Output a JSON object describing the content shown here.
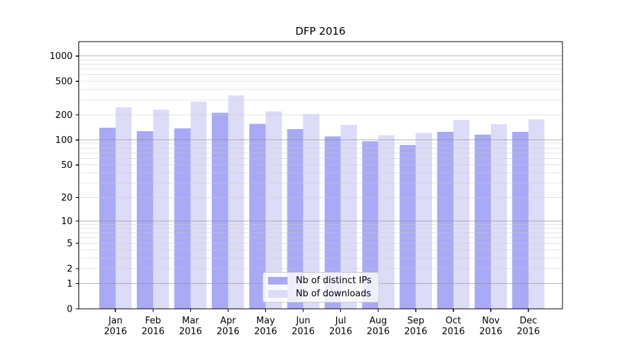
{
  "figure": {
    "title": "DFP 2016"
  },
  "chart_data": {
    "type": "bar",
    "title": "DFP 2016",
    "categories": [
      "Jan 2016",
      "Feb 2016",
      "Mar 2016",
      "Apr 2016",
      "May 2016",
      "Jun 2016",
      "Jul 2016",
      "Aug 2016",
      "Sep 2016",
      "Oct 2016",
      "Nov 2016",
      "Dec 2016"
    ],
    "series": [
      {
        "name": "Nb of distinct IPs",
        "color": "#a9a9f5",
        "values": [
          140,
          127,
          138,
          211,
          156,
          135,
          110,
          97,
          87,
          125,
          116,
          125
        ]
      },
      {
        "name": "Nb of downloads",
        "color": "#dcdcf8",
        "values": [
          245,
          230,
          286,
          340,
          219,
          203,
          151,
          114,
          122,
          173,
          155,
          176
        ]
      }
    ],
    "xlabel": "",
    "ylabel": "",
    "yscale": "log-like (position proportional to log10(value+1))",
    "yticks": [
      1000,
      500,
      200,
      100,
      50,
      20,
      10,
      5,
      2,
      1,
      0
    ],
    "ylim": [
      0,
      1500
    ],
    "grid": true,
    "legend": {
      "position": "lower center",
      "entries": [
        "Nb of distinct IPs",
        "Nb of downloads"
      ]
    },
    "colors": {
      "bar_dark": "#a9a9f5",
      "bar_light": "#dcdcf8",
      "grid_minor": "#e6e6e6",
      "grid_decade": "#b3b3b3",
      "axis": "#000000"
    }
  }
}
